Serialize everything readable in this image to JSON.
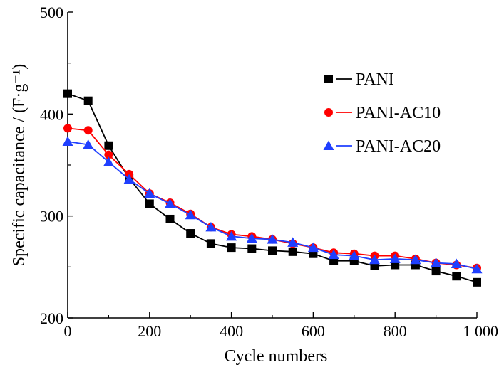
{
  "chart_data": {
    "type": "line",
    "xlabel": "Cycle numbers",
    "ylabel": "Specific capacitance / (F·g⁻¹)",
    "xlim": [
      0,
      1000
    ],
    "ylim": [
      200,
      500
    ],
    "xticks": [
      0,
      200,
      400,
      600,
      800,
      1000
    ],
    "yticks": [
      200,
      300,
      400,
      500
    ],
    "xtick_labels": [
      "0",
      "200",
      "400",
      "600",
      "800",
      "1 000"
    ],
    "ytick_labels": [
      "200",
      "300",
      "400",
      "500"
    ],
    "grid": false,
    "legend_position": "upper-right",
    "x": [
      0,
      50,
      100,
      150,
      200,
      250,
      300,
      350,
      400,
      450,
      500,
      550,
      600,
      650,
      700,
      750,
      800,
      850,
      900,
      950,
      1000
    ],
    "series": [
      {
        "name": "PANI",
        "color": "#000000",
        "marker": "square",
        "values": [
          420,
          413,
          369,
          337,
          312,
          297,
          283,
          273,
          269,
          268,
          266,
          265,
          263,
          256,
          256,
          251,
          252,
          252,
          246,
          241,
          235
        ]
      },
      {
        "name": "PANI-AC10",
        "color": "#ff0000",
        "marker": "circle",
        "values": [
          386,
          384,
          360,
          341,
          322,
          313,
          302,
          289,
          282,
          280,
          277,
          273,
          269,
          264,
          263,
          261,
          261,
          258,
          254,
          252,
          249
        ]
      },
      {
        "name": "PANI-AC20",
        "color": "#1f3fff",
        "marker": "triangle",
        "values": [
          373,
          370,
          353,
          336,
          322,
          312,
          301,
          289,
          280,
          278,
          277,
          274,
          269,
          262,
          261,
          257,
          258,
          257,
          254,
          253,
          248
        ]
      }
    ]
  }
}
